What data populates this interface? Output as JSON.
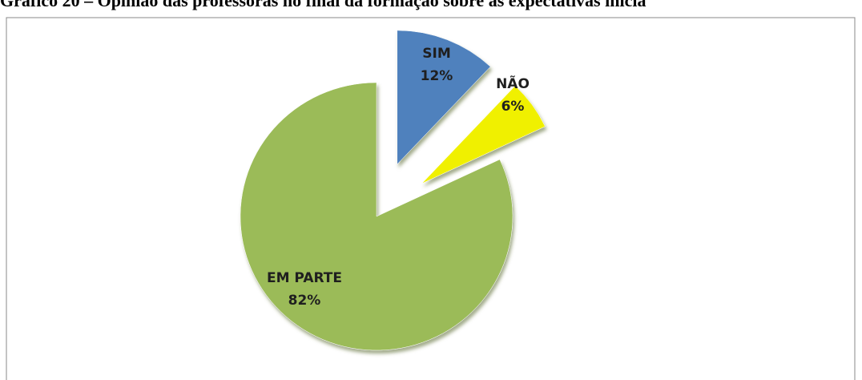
{
  "chart_data": {
    "type": "pie",
    "title": "Gráfico 20 – Opinião das professoras no final da formação sobre as expectativas inicia",
    "categories": [
      "SIM",
      "NÃO",
      "EM PARTE"
    ],
    "values": [
      12,
      6,
      82
    ],
    "value_labels": [
      "12%",
      "6%",
      "82%"
    ],
    "colors": [
      "#4f81bd",
      "#f0f000",
      "#9bbb59"
    ]
  }
}
